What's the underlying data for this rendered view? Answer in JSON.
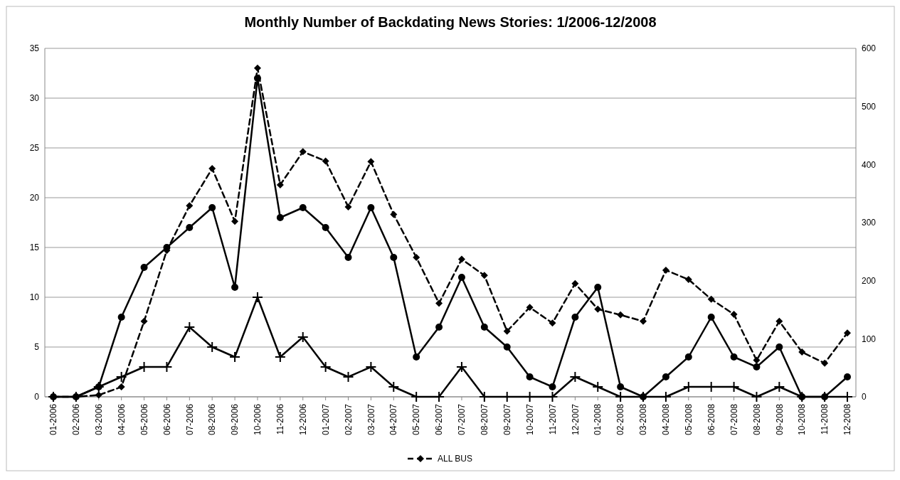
{
  "chart_data": {
    "type": "line",
    "title": "Monthly Number of Backdating News Stories: 1/2006-12/2008",
    "categories": [
      "01-2006",
      "02-2006",
      "03-2006",
      "04-2006",
      "05-2006",
      "06-2006",
      "07-2006",
      "08-2006",
      "09-2006",
      "10-2006",
      "11-2006",
      "12-2006",
      "01-2007",
      "02-2007",
      "03-2007",
      "04-2007",
      "05-2007",
      "06-2007",
      "07-2007",
      "08-2007",
      "09-2007",
      "10-2007",
      "11-2007",
      "12-2007",
      "01-2008",
      "02-2008",
      "03-2008",
      "04-2008",
      "05-2008",
      "06-2008",
      "07-2008",
      "08-2008",
      "09-2008",
      "10-2008",
      "11-2008",
      "12-2008"
    ],
    "series": [
      {
        "color": "#000000",
        "marker": "circle",
        "line_style": "solid",
        "values": [
          0,
          0,
          1,
          8,
          13,
          15,
          17,
          19,
          11,
          32,
          18,
          19,
          17,
          14,
          19,
          14,
          4,
          7,
          12,
          7,
          5,
          2,
          1,
          8,
          11,
          1,
          0,
          2,
          4,
          8,
          4,
          3,
          5,
          0,
          0,
          2
        ]
      },
      {
        "color": "#000000",
        "marker": "cross",
        "line_style": "solid",
        "values": [
          0,
          0,
          1,
          2,
          3,
          3,
          7,
          5,
          4,
          10,
          4,
          6,
          3,
          2,
          3,
          1,
          0,
          0,
          3,
          0,
          0,
          0,
          0,
          2,
          1,
          0,
          0,
          0,
          1,
          1,
          1,
          0,
          1,
          0,
          0,
          0
        ]
      },
      {
        "name": "ALL BUS",
        "color": "#000000",
        "marker": "diamond",
        "line_style": "dashed",
        "axis": "y2",
        "values": [
          0,
          0,
          3,
          17,
          130,
          252,
          329,
          393,
          302,
          566,
          365,
          422,
          406,
          327,
          405,
          314,
          240,
          161,
          237,
          209,
          113,
          154,
          127,
          195,
          151,
          141,
          130,
          218,
          202,
          168,
          142,
          63,
          130,
          77,
          58,
          110
        ]
      }
    ],
    "ylim": [
      0,
      35
    ],
    "yticks": [
      0,
      5,
      10,
      15,
      20,
      25,
      30,
      35
    ],
    "y2lim": [
      0,
      600
    ],
    "y2ticks": [
      0,
      100,
      200,
      300,
      400,
      500,
      600
    ],
    "grid": "y",
    "legend": "bottom"
  }
}
